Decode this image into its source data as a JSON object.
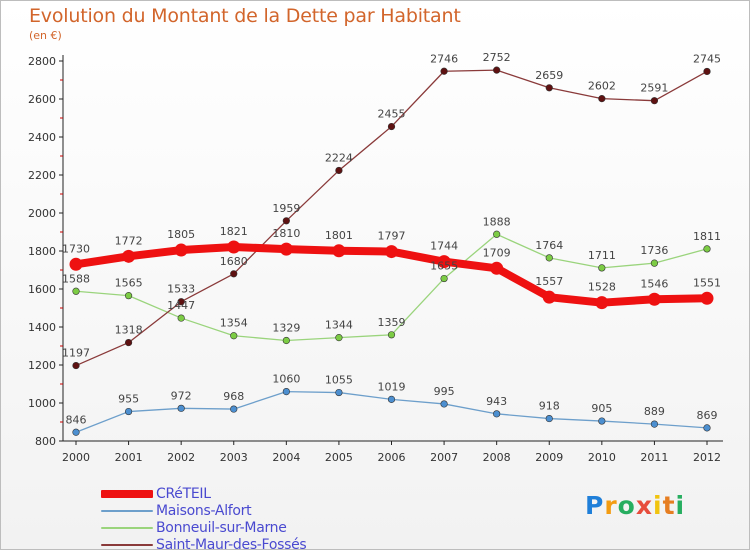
{
  "header": {
    "title": "Evolution du Montant de la Dette par Habitant",
    "subtitle": "(en €)"
  },
  "colors": {
    "title": "#d2652b",
    "legend_text": "#4a4ad0",
    "axis": "#222222",
    "tick_mark": "#cc0000"
  },
  "chart_data": {
    "type": "line",
    "x": [
      "2000",
      "2001",
      "2002",
      "2003",
      "2004",
      "2005",
      "2006",
      "2007",
      "2008",
      "2009",
      "2010",
      "2011",
      "2012"
    ],
    "ylim": [
      800,
      2800
    ],
    "yticks": [
      "800",
      "1000",
      "1200",
      "1400",
      "1600",
      "1800",
      "2000",
      "2200",
      "2400",
      "2600",
      "2800"
    ],
    "grid": false,
    "legend_position": "bottom-left",
    "series": [
      {
        "name": "CRéTEIL",
        "color": "#ee1111",
        "marker_color": "#ee1111",
        "emphasized": true,
        "values": [
          1730,
          1772,
          1805,
          1821,
          1810,
          1801,
          1797,
          1744,
          1709,
          1557,
          1528,
          1546,
          1551
        ],
        "labels": [
          "1730",
          "1772",
          "1805",
          "1821",
          "1810",
          "1801",
          "1797",
          "1744",
          "1709",
          "1557",
          "1528",
          "1546",
          "1551"
        ]
      },
      {
        "name": "Maisons-Alfort",
        "color": "#6d9fcb",
        "marker_color": "#4c8fd0",
        "emphasized": false,
        "values": [
          846,
          955,
          972,
          968,
          1060,
          1055,
          1019,
          995,
          943,
          918,
          905,
          889,
          869
        ],
        "labels": [
          "846",
          "955",
          "972",
          "968",
          "1060",
          "1055",
          "1019",
          "995",
          "943",
          "918",
          "905",
          "889",
          "869"
        ]
      },
      {
        "name": "Bonneuil-sur-Marne",
        "color": "#9ad47c",
        "marker_color": "#7ccc44",
        "emphasized": false,
        "values": [
          1588,
          1565,
          1447,
          1354,
          1329,
          1344,
          1359,
          1655,
          1888,
          1764,
          1711,
          1736,
          1811
        ],
        "labels": [
          "1588",
          "1565",
          "1447",
          "1354",
          "1329",
          "1344",
          "1359",
          "1655",
          "1888",
          "1764",
          "1711",
          "1736",
          "1811"
        ]
      },
      {
        "name": "Saint-Maur-des-Fossés",
        "color": "#8a3a3a",
        "marker_color": "#5e1111",
        "emphasized": false,
        "values": [
          1197,
          1318,
          1533,
          1680,
          1959,
          2224,
          2455,
          2746,
          2752,
          2659,
          2602,
          2591,
          2745
        ],
        "labels": [
          "1197",
          "1318",
          "1533",
          "1680",
          "1959",
          "2224",
          "2455",
          "2746",
          "2752",
          "2659",
          "2602",
          "2591",
          "2745"
        ]
      }
    ]
  },
  "logo": {
    "letters": [
      "P",
      "r",
      "o",
      "x",
      "i",
      "t",
      "i"
    ],
    "letter_colors": [
      "#1f7fd9",
      "#f39c12",
      "#27ae60",
      "#e74c3c",
      "#f1c40f",
      "#e67e22",
      "#27ae60"
    ]
  }
}
